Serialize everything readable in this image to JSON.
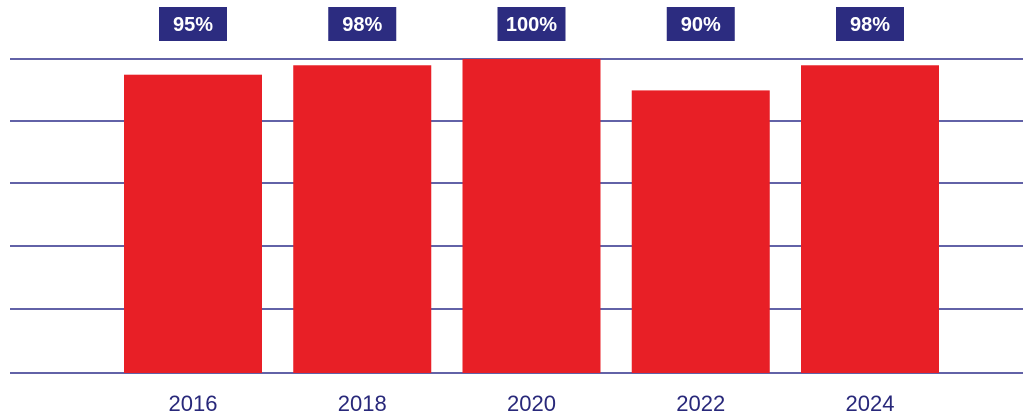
{
  "colors": {
    "bar": "#e81f26",
    "gridline": "#2e2e8a",
    "label_bg": "#2c2c80",
    "label_text": "#ffffff",
    "tick_text": "#28287a"
  },
  "chart_data": {
    "type": "bar",
    "categories": [
      "2016",
      "2018",
      "2020",
      "2022",
      "2024"
    ],
    "values": [
      95,
      98,
      100,
      90,
      98
    ],
    "value_labels": [
      "95%",
      "98%",
      "100%",
      "90%",
      "98%"
    ],
    "title": "",
    "xlabel": "",
    "ylabel": "",
    "ylim": [
      0,
      100
    ],
    "grid": true,
    "legend": "none"
  }
}
